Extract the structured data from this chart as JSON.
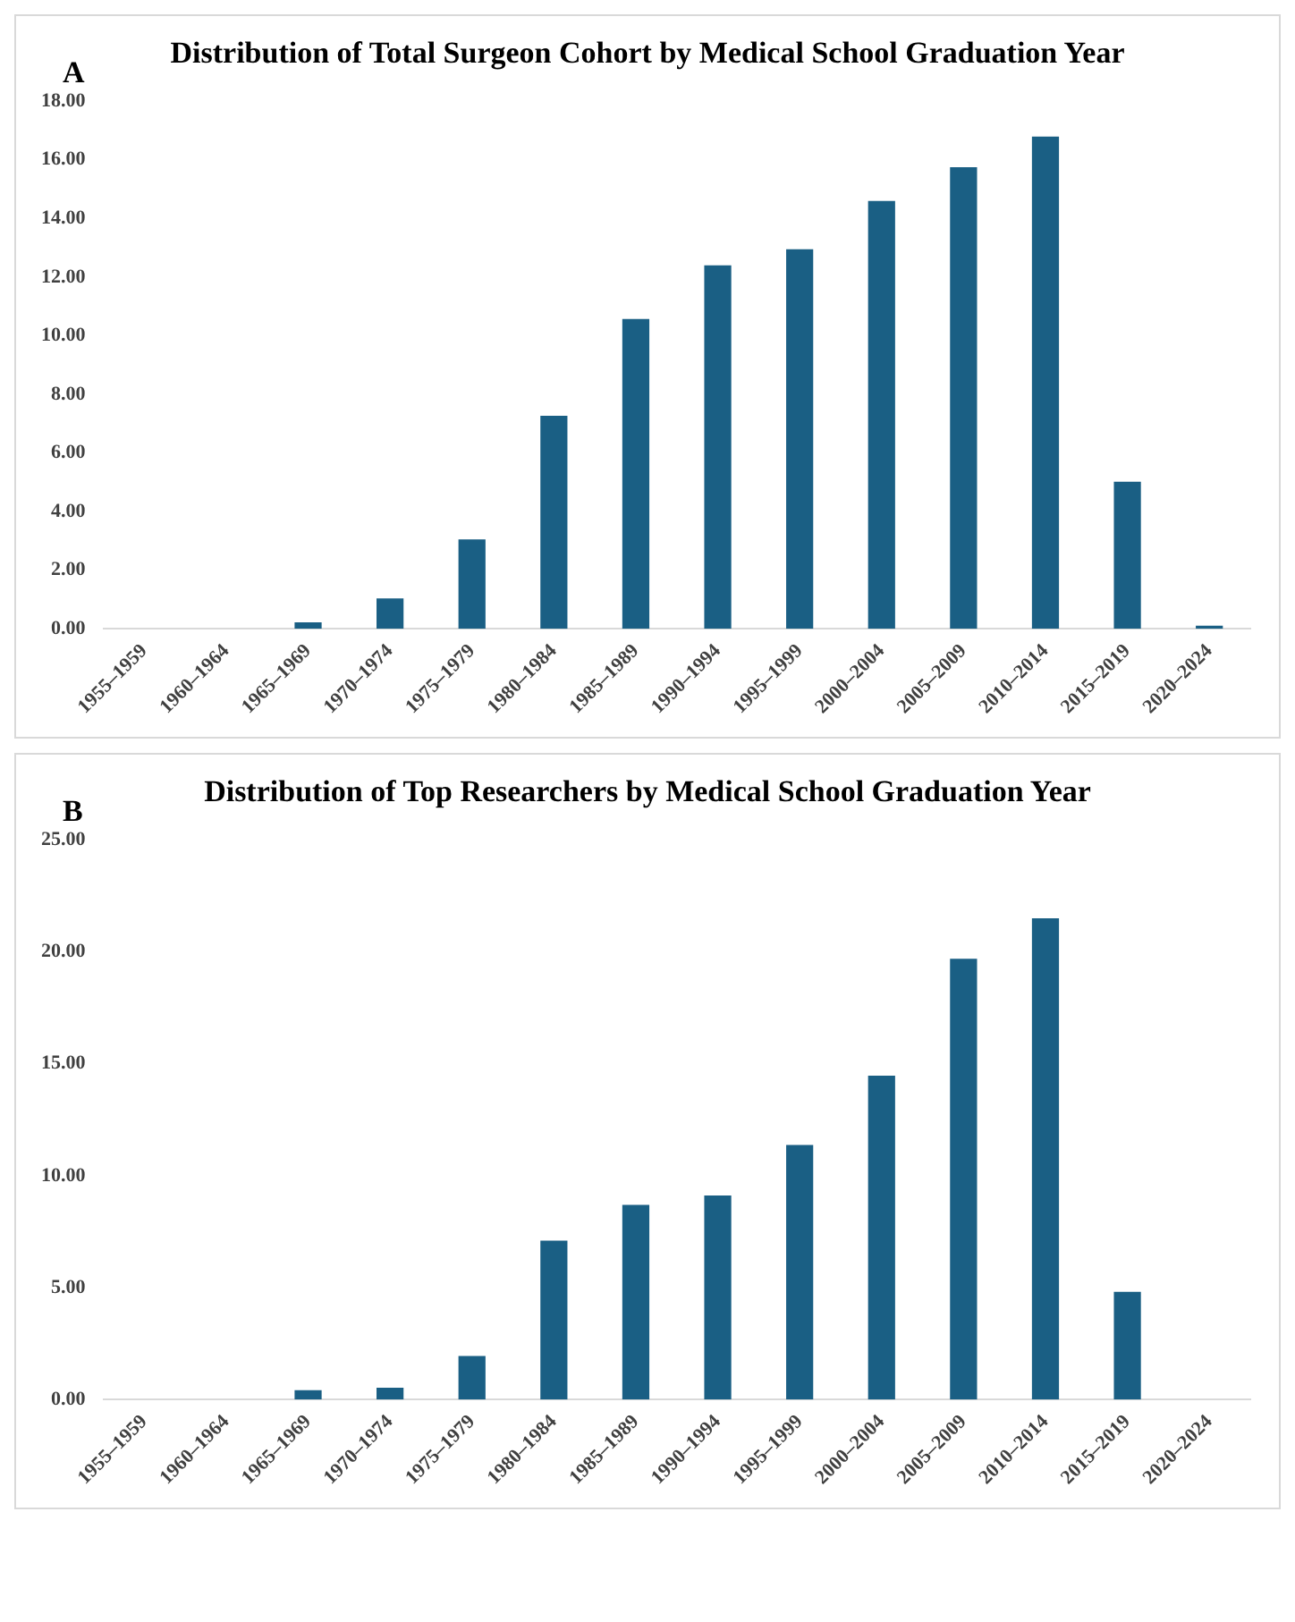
{
  "chart_data": [
    {
      "type": "bar",
      "title": "Distribution of Total Surgeon Cohort by Medical School Graduation Year",
      "annotations": [
        "A"
      ],
      "categories": [
        "1955–1959",
        "1960–1964",
        "1965–1969",
        "1970–1974",
        "1975–1979",
        "1980–1984",
        "1985–1989",
        "1990–1994",
        "1995–1999",
        "2000–2004",
        "2005–2009",
        "2010–2014",
        "2015–2019",
        "2020–2024"
      ],
      "values": [
        0,
        0,
        0.22,
        1.04,
        3.05,
        7.27,
        10.57,
        12.4,
        12.95,
        14.6,
        15.75,
        16.79,
        5.02,
        0.11
      ],
      "color": "#1a5f84",
      "ylim": [
        0,
        18
      ],
      "yticks": [
        {
          "value": 0,
          "label": "0.00"
        },
        {
          "value": 2,
          "label": "2.00"
        },
        {
          "value": 4,
          "label": "4.00"
        },
        {
          "value": 6,
          "label": "6.00"
        },
        {
          "value": 8,
          "label": "8.00"
        },
        {
          "value": 10,
          "label": "10.00"
        },
        {
          "value": 12,
          "label": "12.00"
        },
        {
          "value": 14,
          "label": "14.00"
        },
        {
          "value": 16,
          "label": "16.00"
        },
        {
          "value": 18,
          "label": "18.00"
        }
      ],
      "grid": false,
      "legend": false
    },
    {
      "type": "bar",
      "title": "Distribution of Top Researchers by Medical School Graduation Year",
      "annotations": [
        "B"
      ],
      "categories": [
        "1955–1959",
        "1960–1964",
        "1965–1969",
        "1970–1974",
        "1975–1979",
        "1980–1984",
        "1985–1989",
        "1990–1994",
        "1995–1999",
        "2000–2004",
        "2005–2009",
        "2010–2014",
        "2015–2019",
        "2020–2024"
      ],
      "values": [
        0,
        0,
        0.42,
        0.53,
        1.95,
        7.1,
        8.7,
        9.12,
        11.37,
        14.47,
        19.69,
        21.49,
        4.81,
        0
      ],
      "color": "#1a5f84",
      "ylim": [
        0,
        25
      ],
      "yticks": [
        {
          "value": 0,
          "label": "0.00"
        },
        {
          "value": 5,
          "label": "5.00"
        },
        {
          "value": 10,
          "label": "10.00"
        },
        {
          "value": 15,
          "label": "15.00"
        },
        {
          "value": 20,
          "label": "20.00"
        },
        {
          "value": 25,
          "label": "25.00"
        }
      ],
      "grid": false,
      "legend": false
    }
  ]
}
